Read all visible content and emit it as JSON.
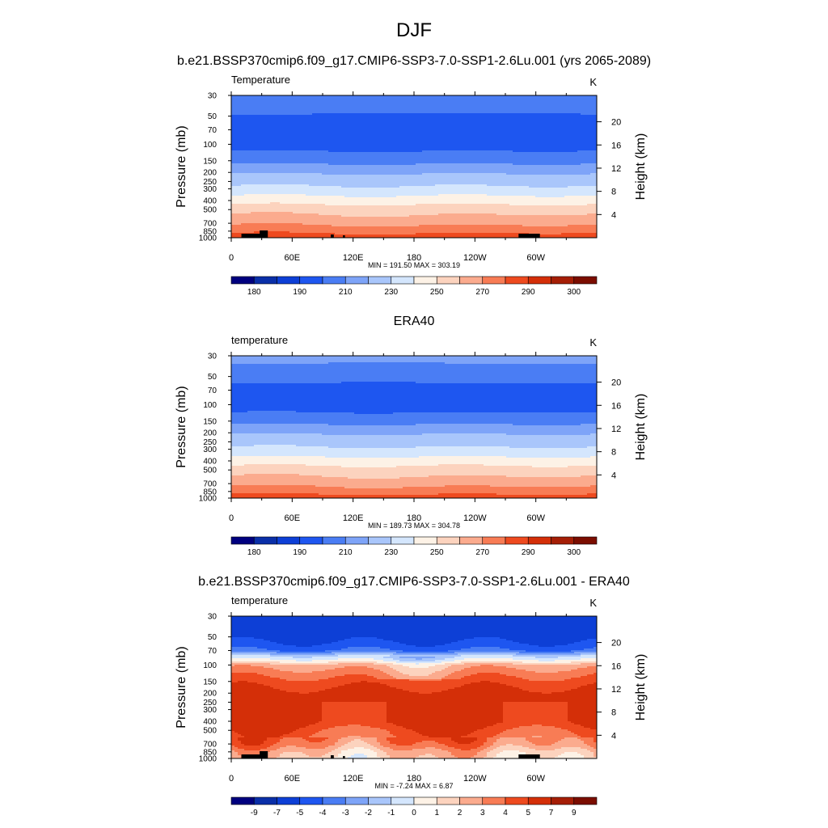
{
  "figure": {
    "title": "DJF",
    "subtitle": "b.e21.BSSP370cmip6.f09_g17.CMIP6-SSP3-7.0-SSP1-2.6Lu.001 (yrs 2065-2089)"
  },
  "chart_data": [
    {
      "type": "heatmap",
      "title": "b.e21.BSSP370cmip6.f09_g17.CMIP6-SSP3-7.0-SSP1-2.6Lu.001 (yrs 2065-2089)",
      "left_label": "Temperature",
      "units": "K",
      "ylabel": "Pressure (mb)",
      "ylabel_right": "Height (km)",
      "x_ticks": [
        "0",
        "60E",
        "120E",
        "180",
        "120W",
        "60W"
      ],
      "x_tick_values": [
        0,
        60,
        120,
        180,
        240,
        300
      ],
      "xlim": [
        0,
        360
      ],
      "p_ticks": [
        "30",
        "50",
        "70",
        "100",
        "150",
        "200",
        "250",
        "300",
        "400",
        "500",
        "700",
        "850",
        "1000"
      ],
      "p_tick_values": [
        30,
        50,
        70,
        100,
        150,
        200,
        250,
        300,
        400,
        500,
        700,
        850,
        1000
      ],
      "ylim": [
        1000,
        30
      ],
      "height_ticks": [
        "4",
        "8",
        "12",
        "16",
        "20"
      ],
      "height_tick_values": [
        4,
        8,
        12,
        16,
        20
      ],
      "stats": "MIN = 191.50  MAX = 303.19",
      "min": 191.5,
      "max": 303.19,
      "colorbar_labels": [
        "180",
        "190",
        "210",
        "230",
        "250",
        "270",
        "290",
        "300"
      ],
      "colorbar_levels": [
        180,
        185,
        190,
        200,
        210,
        220,
        230,
        240,
        250,
        260,
        270,
        280,
        290,
        295,
        300
      ],
      "profile_levels_mb": [
        30,
        50,
        70,
        100,
        150,
        200,
        250,
        300,
        400,
        500,
        700,
        850,
        1000
      ],
      "profile_values": [
        206,
        199,
        196,
        196,
        207,
        219,
        226,
        233,
        246,
        256,
        268,
        277,
        287
      ],
      "topography": true
    },
    {
      "type": "heatmap",
      "title": "ERA40",
      "left_label": "temperature",
      "units": "K",
      "ylabel": "Pressure (mb)",
      "ylabel_right": "Height (km)",
      "x_ticks": [
        "0",
        "60E",
        "120E",
        "180",
        "120W",
        "60W"
      ],
      "x_tick_values": [
        0,
        60,
        120,
        180,
        240,
        300
      ],
      "xlim": [
        0,
        360
      ],
      "p_ticks": [
        "30",
        "50",
        "70",
        "100",
        "150",
        "200",
        "250",
        "300",
        "400",
        "500",
        "700",
        "850",
        "1000"
      ],
      "p_tick_values": [
        30,
        50,
        70,
        100,
        150,
        200,
        250,
        300,
        400,
        500,
        700,
        850,
        1000
      ],
      "ylim": [
        1000,
        30
      ],
      "height_ticks": [
        "4",
        "8",
        "12",
        "16",
        "20"
      ],
      "height_tick_values": [
        4,
        8,
        12,
        16,
        20
      ],
      "stats": "MIN = 189.73  MAX = 304.78",
      "min": 189.73,
      "max": 304.78,
      "colorbar_labels": [
        "180",
        "190",
        "210",
        "230",
        "250",
        "270",
        "290",
        "300"
      ],
      "colorbar_levels": [
        180,
        185,
        190,
        200,
        210,
        220,
        230,
        240,
        250,
        260,
        270,
        280,
        290,
        295,
        300
      ],
      "profile_levels_mb": [
        30,
        50,
        70,
        100,
        150,
        200,
        250,
        300,
        400,
        500,
        700,
        850,
        1000
      ],
      "profile_values": [
        213,
        203,
        196,
        195,
        207,
        219,
        226,
        232,
        245,
        255,
        267,
        276,
        286
      ],
      "topography": false
    },
    {
      "type": "heatmap",
      "title": "b.e21.BSSP370cmip6.f09_g17.CMIP6-SSP3-7.0-SSP1-2.6Lu.001 - ERA40",
      "left_label": "temperature",
      "units": "K",
      "ylabel": "Pressure (mb)",
      "ylabel_right": "Height (km)",
      "x_ticks": [
        "0",
        "60E",
        "120E",
        "180",
        "120W",
        "60W"
      ],
      "x_tick_values": [
        0,
        60,
        120,
        180,
        240,
        300
      ],
      "xlim": [
        0,
        360
      ],
      "p_ticks": [
        "30",
        "50",
        "70",
        "100",
        "150",
        "200",
        "250",
        "300",
        "400",
        "500",
        "700",
        "850",
        "1000"
      ],
      "p_tick_values": [
        30,
        50,
        70,
        100,
        150,
        200,
        250,
        300,
        400,
        500,
        700,
        850,
        1000
      ],
      "ylim": [
        1000,
        30
      ],
      "height_ticks": [
        "4",
        "8",
        "12",
        "16",
        "20"
      ],
      "height_tick_values": [
        4,
        8,
        12,
        16,
        20
      ],
      "stats": "MIN =  -7.24  MAX =   6.87",
      "min": -7.24,
      "max": 6.87,
      "colorbar_labels": [
        "-9",
        "-7",
        "-5",
        "-4",
        "-3",
        "-2",
        "-1",
        "0",
        "1",
        "2",
        "3",
        "4",
        "5",
        "7",
        "9"
      ],
      "colorbar_levels": [
        -9,
        -7,
        -5,
        -4,
        -3,
        -2,
        -1,
        0,
        1,
        2,
        3,
        4,
        5,
        7,
        9
      ],
      "profile_levels_mb": [
        30,
        50,
        70,
        80,
        90,
        100,
        120,
        150,
        200,
        300,
        400,
        500,
        700,
        850,
        1000
      ],
      "profile_values": [
        -6,
        -5.5,
        -4,
        -1,
        0.5,
        2.5,
        3.5,
        4.5,
        5.5,
        5.5,
        5.5,
        4.5,
        3.5,
        2,
        1.5
      ],
      "topography": true
    }
  ],
  "colormap": [
    "#00007f",
    "#0a2fa8",
    "#0d3fd6",
    "#1e56f0",
    "#4a7df4",
    "#7ea4f8",
    "#a9c6fb",
    "#d4e6fd",
    "#fdf2e6",
    "#fcd3be",
    "#fbab8e",
    "#f87c55",
    "#ee4a1f",
    "#d42f08",
    "#a51e06",
    "#7b0d00"
  ],
  "topography_color": "#000000"
}
